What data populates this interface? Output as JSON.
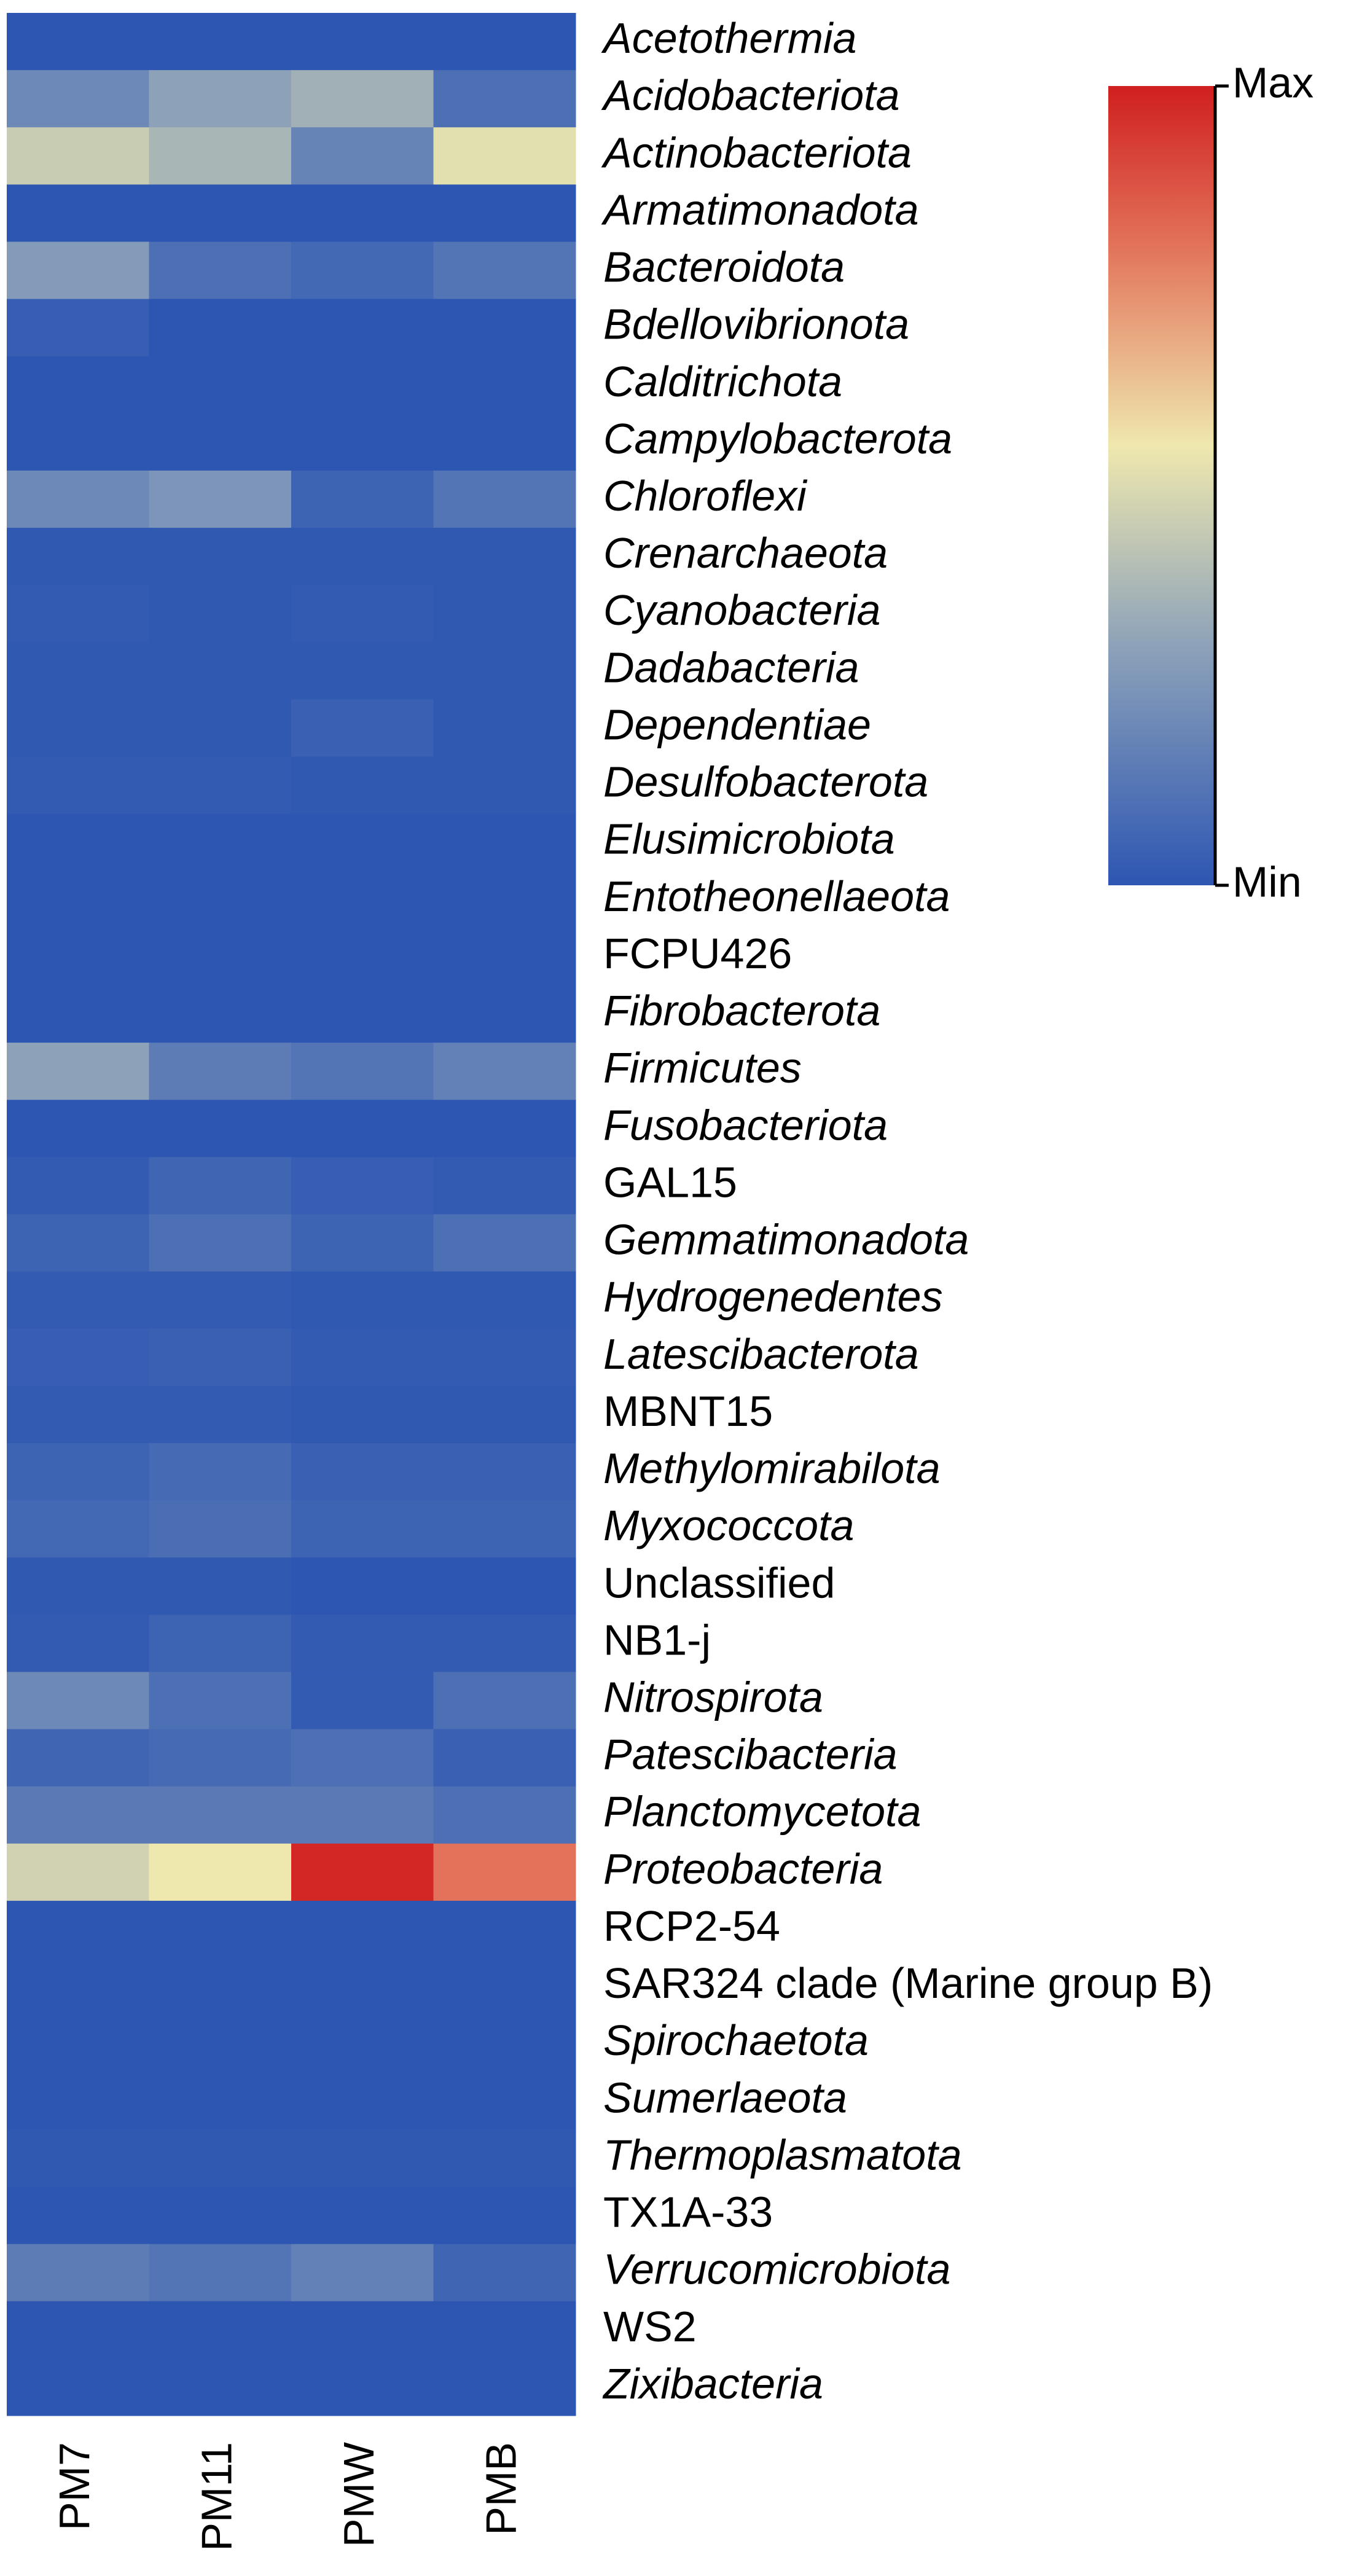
{
  "chart_data": {
    "type": "heatmap",
    "rows": [
      "Acetothermia",
      "Acidobacteriota",
      "Actinobacteriota",
      "Armatimonadota",
      "Bacteroidota",
      "Bdellovibrionota",
      "Calditrichota",
      "Campylobacterota",
      "Chloroflexi",
      "Crenarchaeota",
      "Cyanobacteria",
      "Dadabacteria",
      "Dependentiae",
      "Desulfobacterota",
      "Elusimicrobiota",
      "Entotheonellaeota",
      "FCPU426",
      "Fibrobacterota",
      "Firmicutes",
      "Fusobacteriota",
      "GAL15",
      "Gemmatimonadota",
      "Hydrogenedentes",
      "Latescibacterota",
      "MBNT15",
      "Methylomirabilota",
      "Myxococcota",
      "Unclassified",
      "NB1-j",
      "Nitrospirota",
      "Patescibacteria",
      "Planctomycetota",
      "Proteobacteria",
      "RCP2-54",
      "SAR324 clade (Marine group B)",
      "Spirochaetota",
      "Sumerlaeota",
      "Thermoplasmatota",
      "TX1A-33",
      "Verrucomicrobiota",
      "WS2",
      "Zixibacteria"
    ],
    "row_label_style": [
      "italic",
      "italic",
      "italic",
      "italic",
      "italic",
      "italic",
      "italic",
      "italic",
      "italic",
      "italic",
      "italic",
      "italic",
      "italic",
      "italic",
      "italic",
      "italic",
      "normal",
      "italic",
      "italic",
      "italic",
      "normal",
      "italic",
      "italic",
      "italic",
      "normal",
      "italic",
      "italic",
      "normal",
      "normal",
      "italic",
      "italic",
      "italic",
      "italic",
      "normal",
      "normal",
      "italic",
      "italic",
      "italic",
      "normal",
      "italic",
      "normal",
      "italic"
    ],
    "columns": [
      "PM7",
      "PM11",
      "PMW",
      "PMB"
    ],
    "values": [
      [
        0,
        0,
        0,
        0
      ],
      [
        0.2,
        0.3,
        0.35,
        0.1
      ],
      [
        0.45,
        0.37,
        0.18,
        0.52
      ],
      [
        0,
        0,
        0,
        0
      ],
      [
        0.27,
        0.1,
        0.07,
        0.12
      ],
      [
        0.03,
        0,
        0,
        0
      ],
      [
        0,
        0,
        0,
        0
      ],
      [
        0,
        0,
        0,
        0
      ],
      [
        0.2,
        0.25,
        0.05,
        0.12
      ],
      [
        0.01,
        0.01,
        0.01,
        0.01
      ],
      [
        0.02,
        0.01,
        0.02,
        0.01
      ],
      [
        0.01,
        0.01,
        0.01,
        0.01
      ],
      [
        0.01,
        0.01,
        0.04,
        0.01
      ],
      [
        0.02,
        0.02,
        0.01,
        0.01
      ],
      [
        0,
        0,
        0,
        0
      ],
      [
        0,
        0,
        0,
        0
      ],
      [
        0,
        0,
        0,
        0
      ],
      [
        0,
        0,
        0,
        0
      ],
      [
        0.3,
        0.15,
        0.12,
        0.17
      ],
      [
        0,
        0,
        0,
        0
      ],
      [
        0.02,
        0.06,
        0.03,
        0.02
      ],
      [
        0.05,
        0.1,
        0.05,
        0.1
      ],
      [
        0.02,
        0.02,
        0.01,
        0.01
      ],
      [
        0.03,
        0.04,
        0.02,
        0.02
      ],
      [
        0.02,
        0.02,
        0.01,
        0.01
      ],
      [
        0.05,
        0.08,
        0.04,
        0.04
      ],
      [
        0.07,
        0.09,
        0.05,
        0.05
      ],
      [
        0.01,
        0.01,
        0,
        0
      ],
      [
        0.02,
        0.05,
        0.02,
        0.02
      ],
      [
        0.2,
        0.1,
        0.02,
        0.1
      ],
      [
        0.06,
        0.08,
        0.1,
        0.04
      ],
      [
        0.14,
        0.14,
        0.14,
        0.1
      ],
      [
        0.47,
        0.55,
        0.98,
        0.8
      ],
      [
        0,
        0,
        0,
        0
      ],
      [
        0,
        0,
        0,
        0
      ],
      [
        0,
        0,
        0,
        0
      ],
      [
        0,
        0,
        0,
        0
      ],
      [
        0.01,
        0.01,
        0.01,
        0.01
      ],
      [
        0,
        0,
        0,
        0
      ],
      [
        0.15,
        0.12,
        0.17,
        0.06
      ],
      [
        0,
        0,
        0,
        0
      ],
      [
        0,
        0,
        0,
        0
      ]
    ],
    "colorscale": [
      [
        0,
        "#2d56b2"
      ],
      [
        0.3,
        "#8da2b9"
      ],
      [
        0.55,
        "#efe8ae"
      ],
      [
        0.8,
        "#e2735a"
      ],
      [
        1,
        "#d01f1f"
      ]
    ],
    "clim": [
      0,
      1
    ],
    "cticks": [
      {
        "value": 0,
        "label": "Min"
      },
      {
        "value": 1,
        "label": "Max"
      }
    ]
  }
}
